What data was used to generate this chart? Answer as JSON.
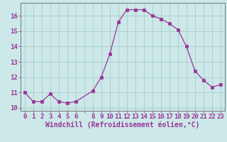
{
  "x": [
    0,
    1,
    2,
    3,
    4,
    5,
    6,
    8,
    9,
    10,
    11,
    12,
    13,
    14,
    15,
    16,
    17,
    18,
    19,
    20,
    21,
    22,
    23
  ],
  "y": [
    11.0,
    10.4,
    10.4,
    10.9,
    10.4,
    10.3,
    10.4,
    11.1,
    12.0,
    13.5,
    15.6,
    16.4,
    16.4,
    16.4,
    16.0,
    15.8,
    15.5,
    15.1,
    14.0,
    12.4,
    11.8,
    11.35,
    11.5
  ],
  "line_color": "#993399",
  "marker_color": "#993399",
  "bg_color": "#cce8e8",
  "grid_color": "#aacccc",
  "axis_color": "#333333",
  "tick_color": "#993399",
  "xlabel": "Windchill (Refroidissement éolien,°C)",
  "xlim": [
    -0.5,
    23.5
  ],
  "ylim": [
    9.8,
    16.85
  ],
  "yticks": [
    10,
    11,
    12,
    13,
    14,
    15,
    16
  ],
  "xtick_positions": [
    0,
    1,
    2,
    3,
    4,
    5,
    6,
    7,
    8,
    9,
    10,
    11,
    12,
    13,
    14,
    15,
    16,
    17,
    18,
    19,
    20,
    21,
    22,
    23
  ],
  "xtick_labels": [
    "0",
    "1",
    "2",
    "3",
    "4",
    "5",
    "6",
    "",
    "8",
    "9",
    "10",
    "11",
    "12",
    "13",
    "14",
    "15",
    "16",
    "17",
    "18",
    "19",
    "20",
    "21",
    "22",
    "23"
  ],
  "xlabel_fontsize": 7,
  "tick_fontsize": 6.5
}
